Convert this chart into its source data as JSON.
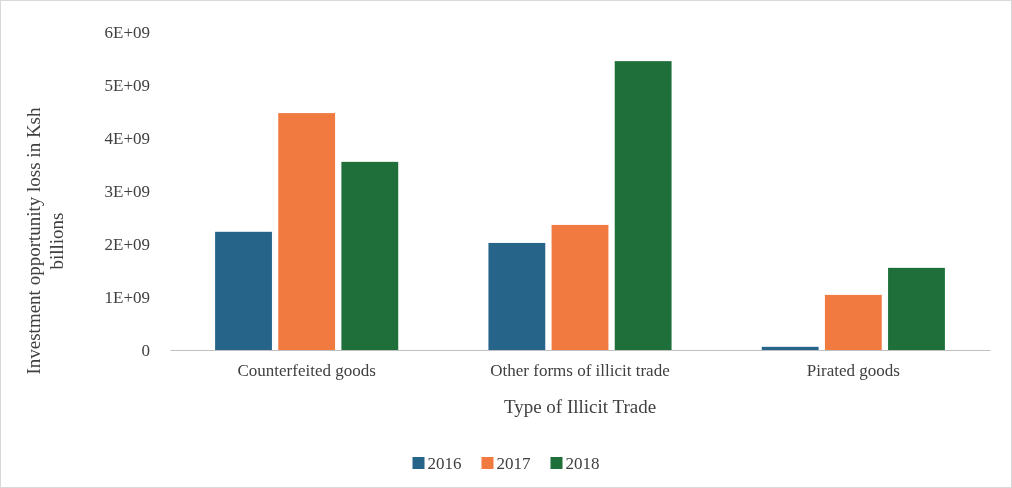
{
  "chart_data": {
    "type": "bar",
    "xlabel": "Type of Illicit Trade",
    "ylabel": "Investment opportunity loss in Ksh billions",
    "categories": [
      "Counterfeited goods",
      "Other forms of illicit trade",
      "Pirated goods"
    ],
    "series": [
      {
        "name": "2016",
        "color": "#26648a",
        "values": [
          2230000000.0,
          2020000000.0,
          60000000.0
        ]
      },
      {
        "name": "2017",
        "color": "#f07a3f",
        "values": [
          4470000000.0,
          2360000000.0,
          1040000000.0
        ]
      },
      {
        "name": "2018",
        "color": "#1e6f3a",
        "values": [
          3550000000.0,
          5450000000.0,
          1550000000.0
        ]
      }
    ],
    "ylim": [
      0,
      6000000000.0
    ],
    "yticks": [
      0,
      {
        "value": 1000000000.0,
        "label": "1E+09"
      },
      {
        "value": 2000000000.0,
        "label": "2E+09"
      },
      {
        "value": 3000000000.0,
        "label": "3E+09"
      },
      {
        "value": 4000000000.0,
        "label": "4E+09"
      },
      {
        "value": 5000000000.0,
        "label": "5E+09"
      },
      {
        "value": 6000000000.0,
        "label": "6E+09"
      }
    ],
    "grid": false,
    "legend": "bottom"
  }
}
